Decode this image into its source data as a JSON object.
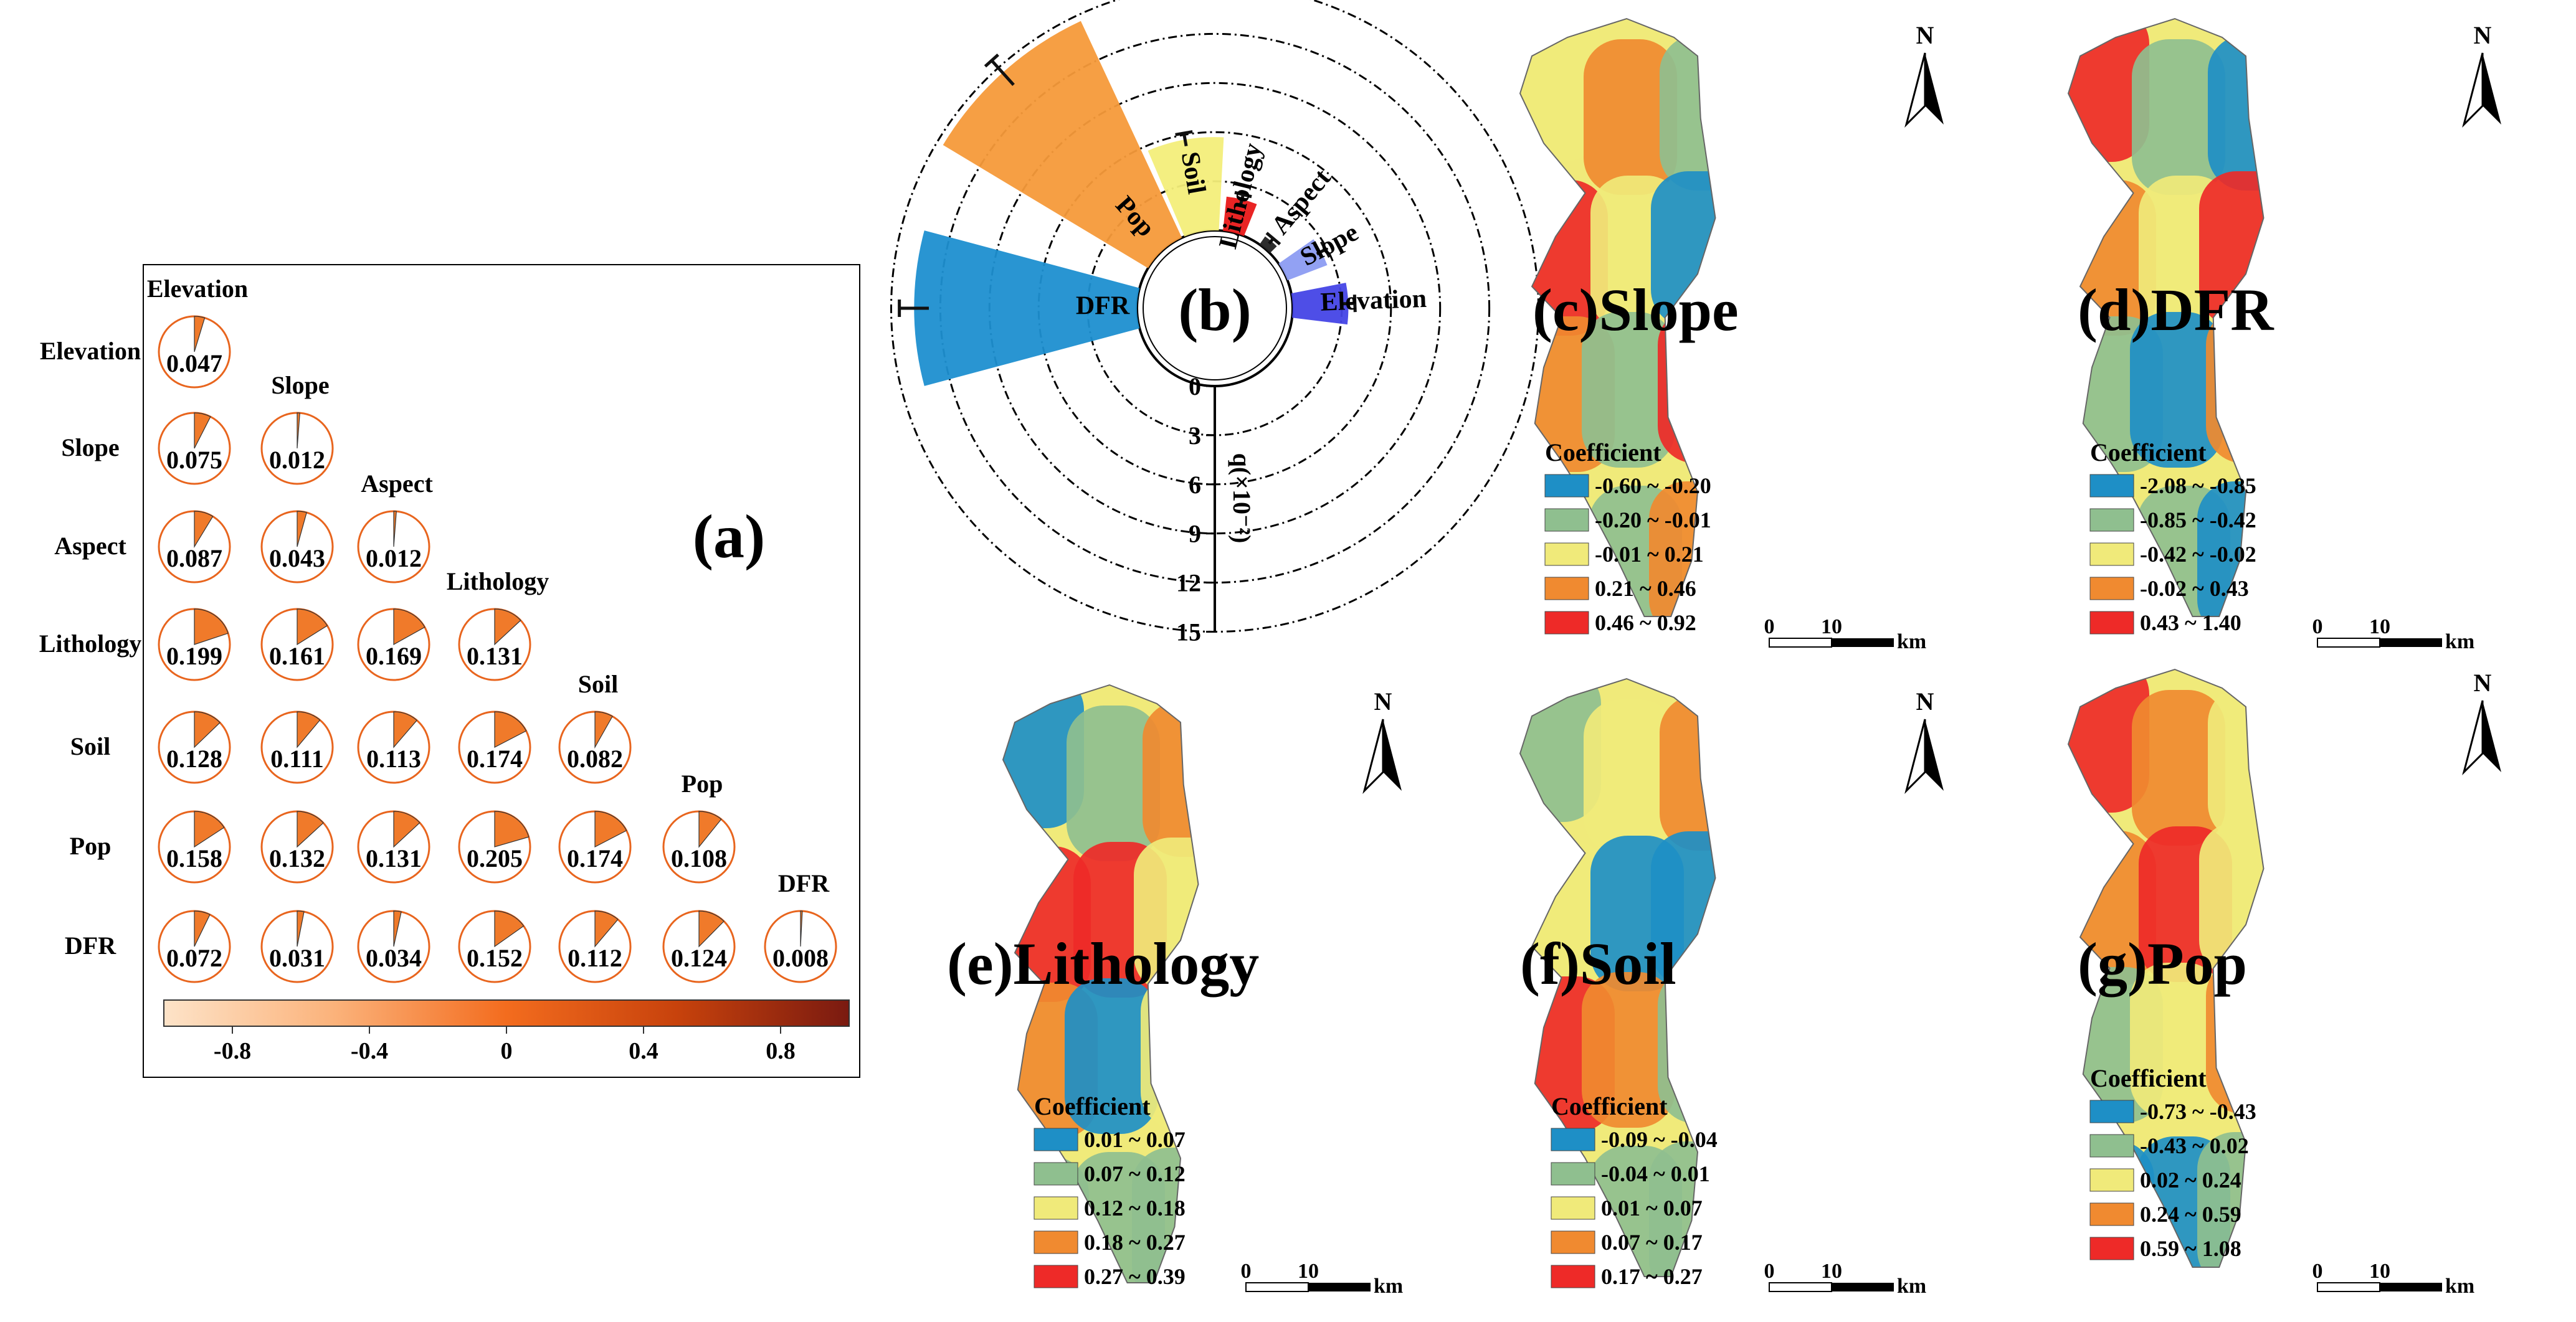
{
  "colors": {
    "frame": "#000000",
    "pie_edge": "#e8651e",
    "pie_fill": "#f07a2a",
    "class_blue": "#1e8fc6",
    "class_green": "#8fbf8f",
    "class_yellow": "#f0ea7a",
    "class_orange": "#f08a30",
    "class_red": "#ee2a28",
    "rose_colors": [
      "#1e8fd0",
      "#f59a3a",
      "#f3ee7a",
      "#e81818",
      "#222222",
      "#8c9cf2",
      "#4444e6"
    ],
    "colorbar_stops": [
      "#fde3c8",
      "#fbb27a",
      "#f36c1e",
      "#c7420c",
      "#7a1a10"
    ]
  },
  "chart_data": [
    {
      "panel": "(a)",
      "type": "heatmap",
      "factors": [
        "Elevation",
        "Slope",
        "Aspect",
        "Lithology",
        "Soil",
        "Pop",
        "DFR"
      ],
      "matrix": [
        [
          0.047
        ],
        [
          0.075,
          0.012
        ],
        [
          0.087,
          0.043,
          0.012
        ],
        [
          0.199,
          0.161,
          0.169,
          0.131
        ],
        [
          0.128,
          0.111,
          0.113,
          0.174,
          0.082
        ],
        [
          0.158,
          0.132,
          0.131,
          0.205,
          0.174,
          0.108
        ],
        [
          0.072,
          0.031,
          0.034,
          0.152,
          0.112,
          0.124,
          0.008
        ]
      ],
      "value_labels": [
        [
          "0.047"
        ],
        [
          "0.075",
          "0.012"
        ],
        [
          "0.087",
          "0.043",
          "0.012"
        ],
        [
          "0.199",
          "0.161",
          "0.169",
          "0.131"
        ],
        [
          "0.128",
          "0.111",
          "0.113",
          "0.174",
          "0.082"
        ],
        [
          "0.158",
          "0.132",
          "0.131",
          "0.205",
          "0.174",
          "0.108"
        ],
        [
          "0.072",
          "0.031",
          "0.034",
          "0.152",
          "0.112",
          "0.124",
          "0.008"
        ]
      ],
      "colorbar": {
        "range": [
          -1.0,
          1.0
        ],
        "ticks": [
          "-0.8",
          "-0.4",
          "0",
          "0.4",
          "0.8"
        ]
      }
    },
    {
      "panel": "(b)",
      "type": "bar",
      "subtype": "polar-rose",
      "categories": [
        "DFR",
        "Pop",
        "Soil",
        "Lithology",
        "Aspect",
        "Slope",
        "Elevation"
      ],
      "values": [
        13.6,
        14.6,
        5.7,
        2.1,
        0.6,
        2.6,
        3.4
      ],
      "errors": [
        0.9,
        1.0,
        0.4,
        0.3,
        0.2,
        0.3,
        0.4
      ],
      "r_axis": {
        "label": "q(×10⁻²)",
        "ticks": [
          "0",
          "3",
          "6",
          "9",
          "12",
          "15"
        ],
        "range": [
          0,
          15
        ]
      }
    },
    {
      "type": "heatmap",
      "subtype": "choropleth-maps",
      "maps": [
        {
          "panel": "(c)",
          "title": "(c)Slope",
          "legend_title": "Coefficient",
          "classes": [
            "-0.60 ~ -0.20",
            "-0.20 ~ -0.01",
            "-0.01 ~ 0.21",
            "0.21 ~ 0.46",
            "0.46 ~ 0.92"
          ],
          "north": "N",
          "scale": {
            "start": "0",
            "end": "10",
            "unit": "km"
          }
        },
        {
          "panel": "(d)",
          "title": "(d)DFR",
          "legend_title": "Coefficient",
          "classes": [
            "-2.08 ~ -0.85",
            "-0.85 ~ -0.42",
            "-0.42 ~ -0.02",
            "-0.02 ~ 0.43",
            "0.43 ~ 1.40"
          ],
          "north": "N",
          "scale": {
            "start": "0",
            "end": "10",
            "unit": "km"
          }
        },
        {
          "panel": "(e)",
          "title": "(e)Lithology",
          "legend_title": "Coefficient",
          "classes": [
            "0.01 ~ 0.07",
            "0.07 ~ 0.12",
            "0.12 ~ 0.18",
            "0.18 ~ 0.27",
            "0.27 ~ 0.39"
          ],
          "north": "N",
          "scale": {
            "start": "0",
            "end": "10",
            "unit": "km"
          }
        },
        {
          "panel": "(f)",
          "title": "(f)Soil",
          "legend_title": "Coefficient",
          "classes": [
            "-0.09 ~ -0.04",
            "-0.04 ~ 0.01",
            "0.01 ~ 0.07",
            "0.07 ~ 0.17",
            "0.17 ~ 0.27"
          ],
          "north": "N",
          "scale": {
            "start": "0",
            "end": "10",
            "unit": "km"
          }
        },
        {
          "panel": "(g)",
          "title": "(g)Pop",
          "legend_title": "Coefficient",
          "classes": [
            "-0.73 ~ -0.43",
            "-0.43 ~ 0.02",
            "0.02 ~ 0.24",
            "0.24 ~ 0.59",
            "0.59 ~ 1.08"
          ],
          "north": "N",
          "scale": {
            "start": "0",
            "end": "10",
            "unit": "km"
          }
        }
      ]
    }
  ]
}
